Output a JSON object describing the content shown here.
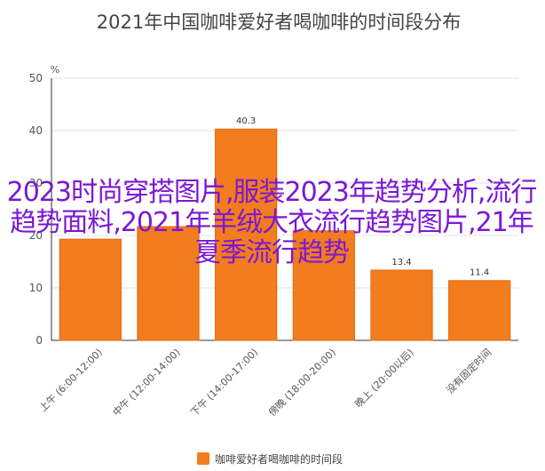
{
  "colors": {
    "bar": "#F27C1E",
    "bar_stroke": "#E06A10",
    "axis": "#333333",
    "grid": "#E3E3E3",
    "overlay_text": "#7A18D6"
  },
  "overlay_text": "2023时尚穿搭图片,服装2023年趋势分析,流行趋势面料,2021年羊绒大衣流行趋势图片,21年夏季流行趋势",
  "chart_data": {
    "type": "bar",
    "title": "2021年中国咖啡爱好者喝咖啡的时间段分布",
    "unit_label": "%",
    "categories": [
      "上午 (6:00-12:00)",
      "中午 (12:00-14:00)",
      "下午 (14:00-17:00)",
      "傍晚 (18:00-20:00)",
      "晚上 (20:00以后)",
      "没有固定时间"
    ],
    "series": [
      {
        "name": "咖啡爱好者喝咖啡的时间段",
        "values": [
          19.3,
          21.7,
          40.3,
          20.9,
          13.4,
          11.4
        ]
      }
    ],
    "data_labels": [
      "",
      "",
      "40.3",
      "",
      "13.4",
      "11.4"
    ],
    "yticks": [
      "0",
      "10",
      "20",
      "30",
      "40",
      "50"
    ],
    "ylim": [
      0,
      50
    ],
    "grid": true,
    "legend_position": "bottom"
  }
}
